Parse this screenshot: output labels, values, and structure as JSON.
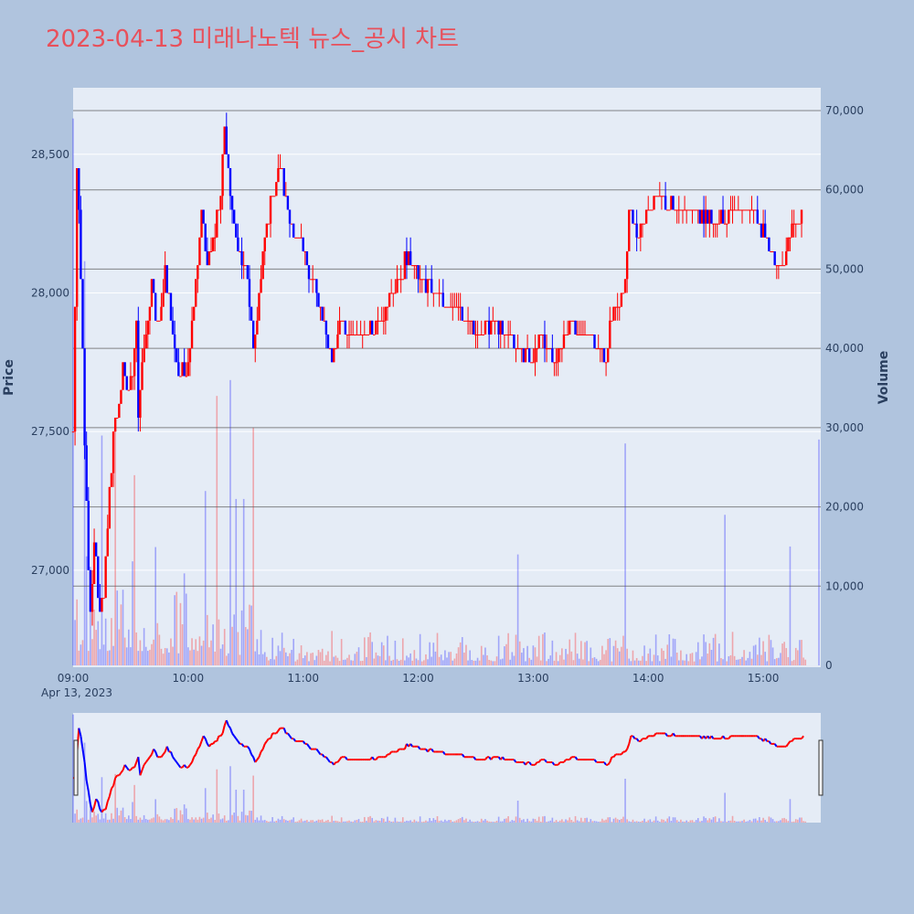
{
  "title": "2023-04-13 미래나노텍 뉴스_공시 차트",
  "colors": {
    "background": "#b0c4de",
    "plot_bg": "#e5ecf6",
    "up": "#ff0000",
    "down": "#0000ff",
    "title": "#e8505b",
    "grid": "#ffffff"
  },
  "chart_data": {
    "type": "candlestick",
    "date_label": "Apr 13, 2023",
    "x_tick_labels": [
      "09:00",
      "10:00",
      "11:00",
      "12:00",
      "13:00",
      "14:00",
      "15:00"
    ],
    "x_range": [
      "09:00",
      "15:30"
    ],
    "price_axis": {
      "label": "Price",
      "range": [
        26650,
        28740
      ],
      "ticks": [
        27000,
        27500,
        28000,
        28500
      ],
      "tick_labels": [
        "27,000",
        "27,500",
        "28,000",
        "28,500"
      ]
    },
    "volume_axis": {
      "label": "Volume",
      "range": [
        0,
        70000
      ],
      "ticks": [
        0,
        10000,
        20000,
        30000,
        40000,
        50000,
        60000,
        70000
      ],
      "tick_labels": [
        "0",
        "10,000",
        "20,000",
        "30,000",
        "40,000",
        "50,000",
        "60,000",
        "70,000"
      ]
    },
    "price_anchors": [
      [
        "09:00",
        27500
      ],
      [
        "09:02",
        28450
      ],
      [
        "09:05",
        27800
      ],
      [
        "09:07",
        27200
      ],
      [
        "09:09",
        26800
      ],
      [
        "09:11",
        27100
      ],
      [
        "09:14",
        26850
      ],
      [
        "09:17",
        27000
      ],
      [
        "09:21",
        27500
      ],
      [
        "09:26",
        27700
      ],
      [
        "09:30",
        27650
      ],
      [
        "09:33",
        27900
      ],
      [
        "09:34",
        27550
      ],
      [
        "09:37",
        27800
      ],
      [
        "09:41",
        28000
      ],
      [
        "09:45",
        27850
      ],
      [
        "09:48",
        28100
      ],
      [
        "09:52",
        27850
      ],
      [
        "09:55",
        27700
      ],
      [
        "10:00",
        27750
      ],
      [
        "10:04",
        28050
      ],
      [
        "10:07",
        28300
      ],
      [
        "10:10",
        28100
      ],
      [
        "10:13",
        28200
      ],
      [
        "10:17",
        28350
      ],
      [
        "10:19",
        28600
      ],
      [
        "10:22",
        28350
      ],
      [
        "10:25",
        28200
      ],
      [
        "10:28",
        28100
      ],
      [
        "10:31",
        28050
      ],
      [
        "10:34",
        27800
      ],
      [
        "10:37",
        28000
      ],
      [
        "10:40",
        28200
      ],
      [
        "10:44",
        28350
      ],
      [
        "10:48",
        28450
      ],
      [
        "10:52",
        28300
      ],
      [
        "10:56",
        28200
      ],
      [
        "11:00",
        28150
      ],
      [
        "11:05",
        28050
      ],
      [
        "11:10",
        27900
      ],
      [
        "11:15",
        27750
      ],
      [
        "11:20",
        27900
      ],
      [
        "11:25",
        27850
      ],
      [
        "11:30",
        27850
      ],
      [
        "11:40",
        27900
      ],
      [
        "11:50",
        28050
      ],
      [
        "11:55",
        28150
      ],
      [
        "12:00",
        28050
      ],
      [
        "12:10",
        28000
      ],
      [
        "12:20",
        27950
      ],
      [
        "12:30",
        27850
      ],
      [
        "12:40",
        27900
      ],
      [
        "12:45",
        27850
      ],
      [
        "12:50",
        27800
      ],
      [
        "13:00",
        27750
      ],
      [
        "13:05",
        27850
      ],
      [
        "13:10",
        27750
      ],
      [
        "13:15",
        27800
      ],
      [
        "13:20",
        27900
      ],
      [
        "13:25",
        27850
      ],
      [
        "13:30",
        27850
      ],
      [
        "13:35",
        27800
      ],
      [
        "13:38",
        27750
      ],
      [
        "13:40",
        27900
      ],
      [
        "13:45",
        27950
      ],
      [
        "13:48",
        28050
      ],
      [
        "13:50",
        28300
      ],
      [
        "13:55",
        28200
      ],
      [
        "14:00",
        28300
      ],
      [
        "14:05",
        28350
      ],
      [
        "14:15",
        28300
      ],
      [
        "14:25",
        28300
      ],
      [
        "14:35",
        28250
      ],
      [
        "14:45",
        28300
      ],
      [
        "14:55",
        28300
      ],
      [
        "15:05",
        28150
      ],
      [
        "15:10",
        28100
      ],
      [
        "15:15",
        28250
      ],
      [
        "15:20",
        28300
      ]
    ],
    "volume_spikes": [
      [
        "09:00",
        69000
      ],
      [
        "09:06",
        51000
      ],
      [
        "09:15",
        29000
      ],
      [
        "09:22",
        31000
      ],
      [
        "09:32",
        24000
      ],
      [
        "10:09",
        22000
      ],
      [
        "10:15",
        34000
      ],
      [
        "10:22",
        36000
      ],
      [
        "10:25",
        21000
      ],
      [
        "10:29",
        21000
      ],
      [
        "10:34",
        30000
      ],
      [
        "12:52",
        14000
      ],
      [
        "13:48",
        28000
      ],
      [
        "14:40",
        19000
      ],
      [
        "15:14",
        15000
      ]
    ]
  }
}
